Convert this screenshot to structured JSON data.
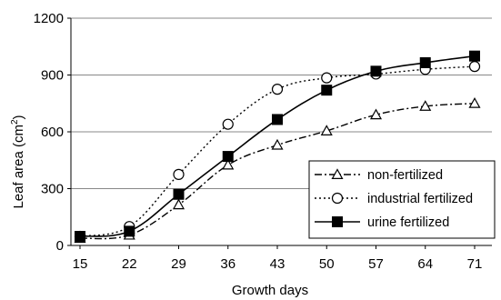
{
  "chart_data": {
    "type": "line",
    "xlabel": "Growth days",
    "ylabel_main": "Leaf area (cm",
    "ylabel_sup": "2",
    "ylabel_close": ")",
    "x": [
      15,
      22,
      29,
      36,
      43,
      50,
      57,
      64,
      71
    ],
    "xlim": [
      15,
      71
    ],
    "ylim": [
      0,
      1200
    ],
    "yticks": [
      0,
      300,
      600,
      900,
      1200
    ],
    "grid": "horizontal",
    "legend_position": "bottom-right",
    "series": [
      {
        "name": "non-fertilized",
        "marker": "triangle-open",
        "line_style": "dash-dot",
        "color": "#000000",
        "values": [
          38,
          55,
          215,
          425,
          530,
          605,
          690,
          735,
          750
        ]
      },
      {
        "name": "industrial fertilized",
        "marker": "circle-open",
        "line_style": "dotted",
        "color": "#000000",
        "values": [
          48,
          100,
          375,
          640,
          825,
          885,
          905,
          930,
          945
        ]
      },
      {
        "name": "urine fertilized",
        "marker": "square-filled",
        "line_style": "solid",
        "color": "#000000",
        "values": [
          48,
          75,
          270,
          470,
          665,
          820,
          920,
          965,
          1000
        ]
      }
    ]
  }
}
